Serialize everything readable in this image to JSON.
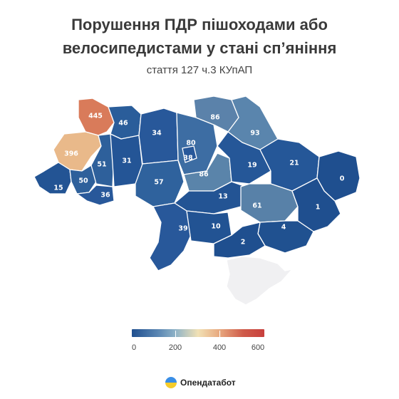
{
  "title_line1": "Порушення ПДР пішоходами або",
  "title_line2": "велосипедистами у стані сп’яніння",
  "subtitle": "стаття 127 ч.3 КУпАП",
  "legend": {
    "min": 0,
    "max": 600,
    "ticks": [
      "0",
      "200",
      "400",
      "600"
    ],
    "colors": [
      "#1f4f8f",
      "#8fb3c7",
      "#f1e1b5",
      "#e8a97f",
      "#c8403d"
    ]
  },
  "brand": {
    "name": "Опендатабот"
  },
  "regions": [
    {
      "id": "volyn",
      "value": "445",
      "color": "#d97b5a"
    },
    {
      "id": "lviv",
      "value": "396",
      "color": "#e9b98a"
    },
    {
      "id": "rivne",
      "value": "46",
      "color": "#2a5d9a"
    },
    {
      "id": "zhytomyr",
      "value": "34",
      "color": "#28589a"
    },
    {
      "id": "kyiv-oblast",
      "value": "80",
      "color": "#3d6da3"
    },
    {
      "id": "kyiv-city",
      "value": "38",
      "color": "#28589a"
    },
    {
      "id": "chernihiv",
      "value": "86",
      "color": "#5b82aa"
    },
    {
      "id": "sumy",
      "value": "93",
      "color": "#5a85ad"
    },
    {
      "id": "ternopil",
      "value": "51",
      "color": "#2e609b"
    },
    {
      "id": "khmelnytskyi",
      "value": "31",
      "color": "#245596"
    },
    {
      "id": "vinnytsia",
      "value": "57",
      "color": "#2f629d"
    },
    {
      "id": "cherkasy",
      "value": "86",
      "color": "#5a84aa"
    },
    {
      "id": "poltava",
      "value": "19",
      "color": "#255798"
    },
    {
      "id": "kharkiv",
      "value": "21",
      "color": "#255798"
    },
    {
      "id": "luhansk",
      "value": "0",
      "color": "#1f4f8f"
    },
    {
      "id": "zakarpattia",
      "value": "15",
      "color": "#235494"
    },
    {
      "id": "ivano-frankivsk",
      "value": "50",
      "color": "#2e609b"
    },
    {
      "id": "chernivtsi",
      "value": "36",
      "color": "#28589a"
    },
    {
      "id": "kirovohrad",
      "value": "13",
      "color": "#235494"
    },
    {
      "id": "dnipropetrovsk",
      "value": "61",
      "color": "#5881a8"
    },
    {
      "id": "donetsk",
      "value": "1",
      "color": "#1f4f8f"
    },
    {
      "id": "odesa",
      "value": "39",
      "color": "#28589a"
    },
    {
      "id": "mykolaiv",
      "value": "10",
      "color": "#225393"
    },
    {
      "id": "zaporizhzhia",
      "value": "4",
      "color": "#205190"
    },
    {
      "id": "kherson",
      "value": "2",
      "color": "#1f4f8f"
    },
    {
      "id": "crimea",
      "value": "",
      "color": "#f0f0f2"
    }
  ]
}
